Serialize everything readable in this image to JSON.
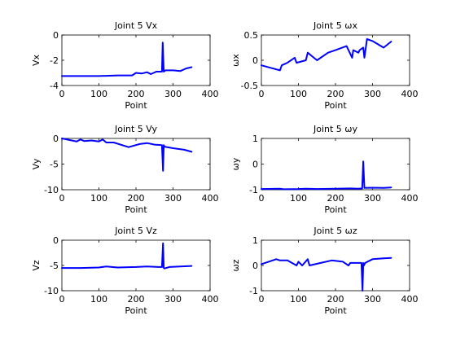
{
  "figure": {
    "background": "#ffffff",
    "series_color": "#0000ff"
  },
  "chart_data": [
    {
      "type": "line",
      "title": "Joint 5 Vx",
      "xlabel": "Point",
      "ylabel": "Vx",
      "xlim": [
        0,
        400
      ],
      "ylim": [
        -4,
        0
      ],
      "xticks": [
        0,
        100,
        200,
        300,
        400
      ],
      "yticks": [
        -4,
        -2,
        0
      ],
      "grid": false,
      "series": [
        {
          "x": [
            0,
            100,
            150,
            190,
            200,
            215,
            230,
            240,
            255,
            270,
            272,
            275,
            277,
            280,
            300,
            320,
            335,
            350
          ],
          "y": [
            -3.25,
            -3.25,
            -3.2,
            -3.2,
            -3.0,
            -3.05,
            -2.95,
            -3.1,
            -2.9,
            -2.9,
            -0.6,
            -2.9,
            -2.85,
            -2.8,
            -2.8,
            -2.85,
            -2.65,
            -2.55
          ]
        }
      ]
    },
    {
      "type": "line",
      "title": "Joint 5 ωx",
      "xlabel": "Point",
      "ylabel": "ωx",
      "xlim": [
        0,
        400
      ],
      "ylim": [
        -0.5,
        0.5
      ],
      "xticks": [
        0,
        100,
        200,
        300,
        400
      ],
      "yticks": [
        -0.5,
        0,
        0.5
      ],
      "grid": false,
      "series": [
        {
          "x": [
            0,
            25,
            50,
            55,
            70,
            90,
            95,
            120,
            125,
            150,
            180,
            200,
            230,
            245,
            248,
            262,
            265,
            275,
            278,
            285,
            300,
            330,
            350
          ],
          "y": [
            -0.1,
            -0.15,
            -0.2,
            -0.1,
            -0.05,
            0.05,
            -0.05,
            0.0,
            0.15,
            0.0,
            0.15,
            0.2,
            0.28,
            0.05,
            0.2,
            0.15,
            0.2,
            0.25,
            0.05,
            0.42,
            0.38,
            0.25,
            0.37
          ]
        }
      ]
    },
    {
      "type": "line",
      "title": "Joint 5 Vy",
      "xlabel": "Point",
      "ylabel": "Vy",
      "xlim": [
        0,
        400
      ],
      "ylim": [
        -10,
        0
      ],
      "xticks": [
        0,
        100,
        200,
        300,
        400
      ],
      "yticks": [
        -10,
        -5,
        0
      ],
      "grid": false,
      "series": [
        {
          "x": [
            0,
            20,
            40,
            50,
            60,
            80,
            100,
            110,
            120,
            140,
            180,
            190,
            210,
            230,
            250,
            270,
            273,
            275,
            277,
            300,
            330,
            350
          ],
          "y": [
            0,
            -0.3,
            -0.6,
            -0.2,
            -0.5,
            -0.4,
            -0.6,
            -0.2,
            -0.8,
            -0.8,
            -1.7,
            -1.5,
            -1.1,
            -0.9,
            -1.2,
            -1.3,
            -6.3,
            -1.3,
            -1.6,
            -1.9,
            -2.2,
            -2.6
          ]
        }
      ]
    },
    {
      "type": "line",
      "title": "Joint 5 ωy",
      "xlabel": "Point",
      "ylabel": "ωy",
      "xlim": [
        0,
        400
      ],
      "ylim": [
        -1,
        1
      ],
      "xticks": [
        0,
        100,
        200,
        300,
        400
      ],
      "yticks": [
        -1,
        0,
        1
      ],
      "grid": false,
      "series": [
        {
          "x": [
            0,
            50,
            60,
            100,
            120,
            150,
            200,
            240,
            260,
            272,
            275,
            278,
            300,
            330,
            350
          ],
          "y": [
            -0.97,
            -0.96,
            -0.98,
            -0.97,
            -0.96,
            -0.97,
            -0.96,
            -0.95,
            -0.96,
            -0.95,
            0.1,
            -0.93,
            -0.92,
            -0.93,
            -0.91
          ]
        }
      ]
    },
    {
      "type": "line",
      "title": "Joint 5 Vz",
      "xlabel": "Point",
      "ylabel": "Vz",
      "xlim": [
        0,
        400
      ],
      "ylim": [
        -10,
        0
      ],
      "xticks": [
        0,
        100,
        200,
        300,
        400
      ],
      "yticks": [
        -10,
        -5,
        0
      ],
      "grid": false,
      "series": [
        {
          "x": [
            0,
            50,
            100,
            120,
            150,
            200,
            230,
            260,
            270,
            273,
            275,
            277,
            290,
            320,
            350
          ],
          "y": [
            -5.5,
            -5.5,
            -5.4,
            -5.2,
            -5.4,
            -5.3,
            -5.2,
            -5.3,
            -5.3,
            -0.6,
            -5.5,
            -5.6,
            -5.3,
            -5.2,
            -5.1
          ]
        }
      ]
    },
    {
      "type": "line",
      "title": "Joint 5 ωz",
      "xlabel": "Point",
      "ylabel": "ωz",
      "xlim": [
        0,
        400
      ],
      "ylim": [
        -1,
        1
      ],
      "xticks": [
        0,
        100,
        200,
        300,
        400
      ],
      "yticks": [
        -1,
        0,
        1
      ],
      "grid": false,
      "series": [
        {
          "x": [
            0,
            40,
            50,
            70,
            95,
            100,
            110,
            125,
            130,
            160,
            190,
            220,
            235,
            240,
            270,
            273,
            275,
            277,
            280,
            300,
            330,
            350
          ],
          "y": [
            0.05,
            0.25,
            0.2,
            0.2,
            0.0,
            0.15,
            0.0,
            0.25,
            0.0,
            0.1,
            0.2,
            0.15,
            0.0,
            0.1,
            0.1,
            -1.0,
            0.1,
            0.0,
            0.1,
            0.25,
            0.28,
            0.3
          ]
        }
      ]
    }
  ]
}
